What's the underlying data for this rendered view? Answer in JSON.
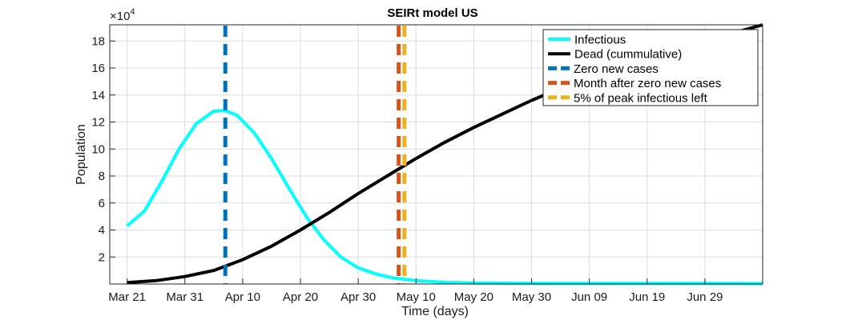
{
  "chart_data": {
    "type": "line",
    "title": "SEIRt model US",
    "xlabel": "Time (days)",
    "ylabel": "Population",
    "y_exponent_label": "×10",
    "y_exponent": "4",
    "xlim": [
      "2020-03-18",
      "2020-07-09"
    ],
    "ylim": [
      0,
      19.2
    ],
    "y_scale_note": "values in units of 10^4",
    "grid": true,
    "legend_position": "top-right",
    "x_ticks": [
      {
        "date": "2020-03-21",
        "label": "Mar 21"
      },
      {
        "date": "2020-03-31",
        "label": "Mar 31"
      },
      {
        "date": "2020-04-10",
        "label": "Apr 10"
      },
      {
        "date": "2020-04-20",
        "label": "Apr 20"
      },
      {
        "date": "2020-04-30",
        "label": "Apr 30"
      },
      {
        "date": "2020-05-10",
        "label": "May 10"
      },
      {
        "date": "2020-05-20",
        "label": "May 20"
      },
      {
        "date": "2020-05-30",
        "label": "May 30"
      },
      {
        "date": "2020-06-09",
        "label": "Jun 09"
      },
      {
        "date": "2020-06-19",
        "label": "Jun 19"
      },
      {
        "date": "2020-06-29",
        "label": "Jun 29"
      }
    ],
    "y_ticks": [
      2,
      4,
      6,
      8,
      10,
      12,
      14,
      16,
      18
    ],
    "series": [
      {
        "name": "Infectious",
        "color": "#00ffff",
        "style": "solid",
        "points": [
          [
            "2020-03-21",
            4.3
          ],
          [
            "2020-03-24",
            5.4
          ],
          [
            "2020-03-27",
            7.6
          ],
          [
            "2020-03-30",
            10.0
          ],
          [
            "2020-04-02",
            11.9
          ],
          [
            "2020-04-05",
            12.8
          ],
          [
            "2020-04-07",
            12.85
          ],
          [
            "2020-04-09",
            12.5
          ],
          [
            "2020-04-12",
            11.2
          ],
          [
            "2020-04-15",
            9.3
          ],
          [
            "2020-04-18",
            7.1
          ],
          [
            "2020-04-21",
            5.0
          ],
          [
            "2020-04-24",
            3.3
          ],
          [
            "2020-04-27",
            2.0
          ],
          [
            "2020-04-30",
            1.2
          ],
          [
            "2020-05-03",
            0.75
          ],
          [
            "2020-05-06",
            0.45
          ],
          [
            "2020-05-10",
            0.25
          ],
          [
            "2020-05-15",
            0.12
          ],
          [
            "2020-05-20",
            0.07
          ],
          [
            "2020-06-01",
            0.05
          ],
          [
            "2020-06-15",
            0.05
          ],
          [
            "2020-06-30",
            0.05
          ],
          [
            "2020-07-09",
            0.03
          ]
        ]
      },
      {
        "name": "Dead (cummulative)",
        "color": "#000000",
        "style": "solid",
        "points": [
          [
            "2020-03-21",
            0.1
          ],
          [
            "2020-03-26",
            0.25
          ],
          [
            "2020-03-31",
            0.55
          ],
          [
            "2020-04-05",
            1.0
          ],
          [
            "2020-04-10",
            1.8
          ],
          [
            "2020-04-15",
            2.8
          ],
          [
            "2020-04-20",
            4.0
          ],
          [
            "2020-04-25",
            5.3
          ],
          [
            "2020-04-30",
            6.7
          ],
          [
            "2020-05-05",
            8.0
          ],
          [
            "2020-05-10",
            9.3
          ],
          [
            "2020-05-15",
            10.5
          ],
          [
            "2020-05-20",
            11.6
          ],
          [
            "2020-05-25",
            12.6
          ],
          [
            "2020-05-30",
            13.6
          ],
          [
            "2020-06-04",
            14.5
          ],
          [
            "2020-06-09",
            15.3
          ],
          [
            "2020-06-14",
            16.0
          ],
          [
            "2020-06-19",
            16.7
          ],
          [
            "2020-06-24",
            17.4
          ],
          [
            "2020-06-29",
            18.1
          ],
          [
            "2020-07-04",
            18.6
          ],
          [
            "2020-07-09",
            19.2
          ]
        ]
      }
    ],
    "vertical_lines": [
      {
        "name": "Zero new cases",
        "date": "2020-04-07",
        "color": "#0072bd"
      },
      {
        "name": "Month after zero new cases",
        "date": "2020-05-07",
        "color": "#d95319"
      },
      {
        "name": "5% of peak infectious left",
        "date": "2020-05-08",
        "color": "#edb120"
      }
    ]
  }
}
